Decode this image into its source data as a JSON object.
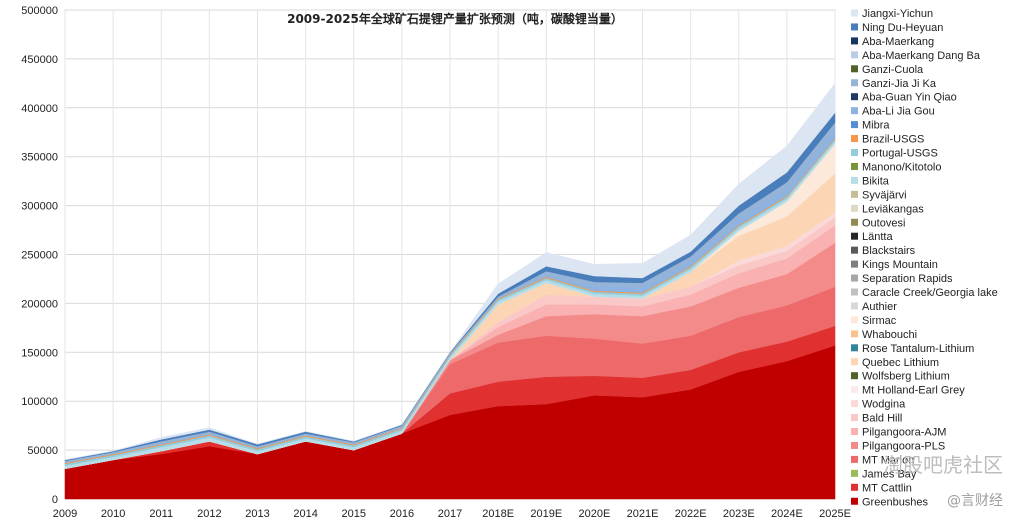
{
  "chart_data": {
    "type": "area",
    "stacked": true,
    "title": "2009-2025年全球矿石提锂产量扩张预测（吨，碳酸锂当量）",
    "xlabel": "",
    "ylabel": "",
    "x": [
      "2009",
      "2010",
      "2011",
      "2012",
      "2013",
      "2014",
      "2015",
      "2016",
      "2017",
      "2018E",
      "2019E",
      "2020E",
      "2021E",
      "2022E",
      "2023E",
      "2024E",
      "2025E"
    ],
    "ylim": [
      0,
      500000
    ],
    "yticks": [
      "0",
      "50000",
      "100000",
      "150000",
      "200000",
      "250000",
      "300000",
      "350000",
      "400000",
      "450000",
      "500000"
    ],
    "grid": true,
    "legend_position": "right",
    "series": [
      {
        "name": "Greenbushes",
        "color": "#c00000",
        "values": [
          31000,
          40000,
          46000,
          54000,
          46000,
          59000,
          50000,
          67000,
          86000,
          95000,
          97000,
          106000,
          104000,
          112000,
          130000,
          141000,
          157000
        ]
      },
      {
        "name": "MT Cattlin",
        "color": "#e03030",
        "values": [
          0,
          0,
          3000,
          5000,
          0,
          0,
          0,
          0,
          22000,
          25000,
          28000,
          20000,
          20000,
          20000,
          20000,
          20000,
          20000
        ]
      },
      {
        "name": "James Bay",
        "color": "#9bbb59",
        "values": [
          0,
          0,
          0,
          0,
          0,
          0,
          0,
          0,
          0,
          0,
          0,
          0,
          0,
          0,
          0,
          0,
          0
        ]
      },
      {
        "name": "MT Marion",
        "color": "#ee6a6a",
        "values": [
          0,
          0,
          0,
          0,
          0,
          0,
          0,
          0,
          30000,
          40000,
          42000,
          38000,
          35000,
          35000,
          36000,
          37000,
          40000
        ]
      },
      {
        "name": "Pilgangoora-PLS",
        "color": "#f48b8b",
        "values": [
          0,
          0,
          0,
          0,
          0,
          0,
          0,
          0,
          4000,
          8000,
          20000,
          25000,
          28000,
          30000,
          30000,
          32000,
          45000
        ]
      },
      {
        "name": "Pilgangoora-AJM",
        "color": "#f9b1b1",
        "values": [
          0,
          0,
          0,
          0,
          0,
          0,
          0,
          0,
          0,
          8000,
          12000,
          10000,
          10000,
          12000,
          15000,
          16000,
          18000
        ]
      },
      {
        "name": "Bald Hill",
        "color": "#fbc8c8",
        "values": [
          0,
          0,
          0,
          0,
          0,
          0,
          0,
          0,
          0,
          5000,
          10000,
          8000,
          8000,
          8000,
          8000,
          8000,
          8000
        ]
      },
      {
        "name": "Wodgina",
        "color": "#fcd9d9",
        "values": [
          0,
          0,
          0,
          0,
          0,
          0,
          0,
          0,
          0,
          0,
          0,
          0,
          0,
          0,
          5000,
          5000,
          5000
        ]
      },
      {
        "name": "Mt Holland-Earl Grey",
        "color": "#fde9e9",
        "values": [
          0,
          0,
          0,
          0,
          0,
          0,
          0,
          0,
          0,
          0,
          0,
          0,
          0,
          0,
          0,
          0,
          0
        ]
      },
      {
        "name": "Wolfsberg Lithium",
        "color": "#4f6228",
        "values": [
          0,
          0,
          0,
          0,
          0,
          0,
          0,
          0,
          0,
          0,
          0,
          0,
          0,
          0,
          0,
          0,
          0
        ]
      },
      {
        "name": "Quebec Lithium",
        "color": "#fcd5b4",
        "values": [
          0,
          0,
          0,
          0,
          0,
          0,
          0,
          0,
          0,
          18000,
          12000,
          0,
          0,
          15000,
          25000,
          30000,
          40000
        ]
      },
      {
        "name": "Rose Tantalum-Lithium",
        "color": "#31849b",
        "values": [
          0,
          0,
          0,
          0,
          0,
          0,
          0,
          0,
          0,
          0,
          0,
          0,
          0,
          0,
          0,
          0,
          0
        ]
      },
      {
        "name": "Whabouchi",
        "color": "#fac08f",
        "values": [
          0,
          0,
          0,
          0,
          0,
          0,
          0,
          0,
          0,
          0,
          0,
          0,
          0,
          0,
          0,
          0,
          0
        ]
      },
      {
        "name": "Sirmac",
        "color": "#fde9d9",
        "values": [
          0,
          0,
          0,
          0,
          0,
          0,
          0,
          0,
          0,
          0,
          0,
          0,
          0,
          0,
          5000,
          15000,
          30000
        ]
      },
      {
        "name": "Authier",
        "color": "#d8d8d8",
        "values": [
          0,
          0,
          0,
          0,
          0,
          0,
          0,
          0,
          0,
          0,
          0,
          0,
          0,
          0,
          0,
          0,
          0
        ]
      },
      {
        "name": "Caracle Creek/Georgia lake",
        "color": "#c0c0c0",
        "values": [
          0,
          0,
          0,
          0,
          0,
          0,
          0,
          0,
          0,
          0,
          0,
          0,
          0,
          0,
          0,
          0,
          0
        ]
      },
      {
        "name": "Separation Rapids",
        "color": "#a6a6a6",
        "values": [
          0,
          0,
          0,
          0,
          0,
          0,
          0,
          0,
          0,
          0,
          0,
          0,
          0,
          0,
          0,
          0,
          0
        ]
      },
      {
        "name": "Kings Mountain",
        "color": "#7f7f7f",
        "values": [
          0,
          0,
          0,
          0,
          0,
          0,
          0,
          0,
          0,
          0,
          0,
          0,
          0,
          0,
          0,
          0,
          0
        ]
      },
      {
        "name": "Blackstairs",
        "color": "#595959",
        "values": [
          0,
          0,
          0,
          0,
          0,
          0,
          0,
          0,
          0,
          0,
          0,
          0,
          0,
          0,
          0,
          0,
          0
        ]
      },
      {
        "name": "Läntta",
        "color": "#262626",
        "values": [
          0,
          0,
          0,
          0,
          0,
          0,
          0,
          0,
          0,
          0,
          0,
          0,
          0,
          0,
          0,
          0,
          0
        ]
      },
      {
        "name": "Outovesi",
        "color": "#948a54",
        "values": [
          0,
          0,
          0,
          0,
          0,
          0,
          0,
          0,
          0,
          0,
          0,
          0,
          0,
          0,
          0,
          0,
          0
        ]
      },
      {
        "name": "Leviäkangas",
        "color": "#ddd9c4",
        "values": [
          0,
          0,
          0,
          0,
          0,
          0,
          0,
          0,
          0,
          0,
          0,
          0,
          0,
          0,
          0,
          0,
          0
        ]
      },
      {
        "name": "Syväjärvi",
        "color": "#c4bd97",
        "values": [
          0,
          0,
          0,
          0,
          0,
          0,
          0,
          0,
          0,
          0,
          0,
          0,
          0,
          0,
          0,
          0,
          0
        ]
      },
      {
        "name": "Bikita",
        "color": "#b7dee8",
        "values": [
          3000,
          3000,
          4000,
          4000,
          3000,
          3000,
          3000,
          3000,
          3000,
          3000,
          3000,
          3000,
          3000,
          3000,
          3000,
          3000,
          3000
        ]
      },
      {
        "name": "Manono/Kitotolo",
        "color": "#77933c",
        "values": [
          0,
          0,
          0,
          0,
          0,
          0,
          0,
          0,
          0,
          0,
          0,
          0,
          0,
          0,
          0,
          0,
          0
        ]
      },
      {
        "name": "Portugal-USGS",
        "color": "#93cddd",
        "values": [
          2000,
          2000,
          2000,
          2000,
          2000,
          2000,
          2000,
          2000,
          2000,
          2000,
          2000,
          2000,
          2000,
          2000,
          2000,
          2000,
          2000
        ]
      },
      {
        "name": "Brazil-USGS",
        "color": "#f79646",
        "values": [
          1000,
          1000,
          1000,
          1000,
          1000,
          1000,
          1000,
          1000,
          1000,
          1000,
          1000,
          1000,
          1000,
          1000,
          1000,
          1000,
          1000
        ]
      },
      {
        "name": "Mibra",
        "color": "#558ed5",
        "values": [
          0,
          0,
          0,
          0,
          0,
          0,
          0,
          0,
          0,
          0,
          0,
          0,
          0,
          0,
          0,
          0,
          0
        ]
      },
      {
        "name": "Aba-Li Jia Gou",
        "color": "#8db3e2",
        "values": [
          0,
          0,
          0,
          0,
          0,
          0,
          0,
          0,
          0,
          0,
          0,
          5000,
          5000,
          5000,
          6000,
          7000,
          8000
        ]
      },
      {
        "name": "Aba-Guan Yin Qiao",
        "color": "#1f3864",
        "values": [
          0,
          0,
          0,
          0,
          0,
          0,
          0,
          0,
          0,
          0,
          0,
          0,
          0,
          0,
          0,
          0,
          0
        ]
      },
      {
        "name": "Ganzi-Jia Ji Ka",
        "color": "#95b3d7",
        "values": [
          2000,
          2000,
          3000,
          3000,
          2000,
          2000,
          2000,
          2000,
          1000,
          2000,
          6000,
          4000,
          5000,
          5000,
          6000,
          7000,
          8000
        ]
      },
      {
        "name": "Ganzi-Cuola",
        "color": "#4f6228",
        "values": [
          0,
          0,
          0,
          0,
          0,
          0,
          0,
          0,
          0,
          0,
          0,
          0,
          0,
          0,
          0,
          0,
          0
        ]
      },
      {
        "name": "Aba-Maerkang Dang Ba",
        "color": "#b9cde5",
        "values": [
          0,
          0,
          0,
          0,
          0,
          0,
          0,
          0,
          0,
          0,
          0,
          0,
          0,
          0,
          0,
          0,
          0
        ]
      },
      {
        "name": "Aba-Maerkang",
        "color": "#17375e",
        "values": [
          0,
          0,
          0,
          0,
          0,
          0,
          0,
          0,
          0,
          0,
          0,
          0,
          0,
          0,
          0,
          0,
          0
        ]
      },
      {
        "name": "Ning Du-Heyuan",
        "color": "#4a7ebb",
        "values": [
          1000,
          1000,
          2000,
          2000,
          2000,
          2000,
          1000,
          1000,
          1000,
          3000,
          5000,
          6000,
          5000,
          5000,
          8000,
          10000,
          10000
        ]
      },
      {
        "name": "Jiangxi-Yichun",
        "color": "#dce6f2",
        "values": [
          0,
          0,
          2000,
          2000,
          0,
          0,
          0,
          0,
          0,
          10000,
          14000,
          12000,
          15000,
          17000,
          22000,
          27000,
          30000
        ]
      }
    ]
  },
  "watermark": {
    "main": "淘股吧虎社区",
    "sub": "@言财经"
  }
}
